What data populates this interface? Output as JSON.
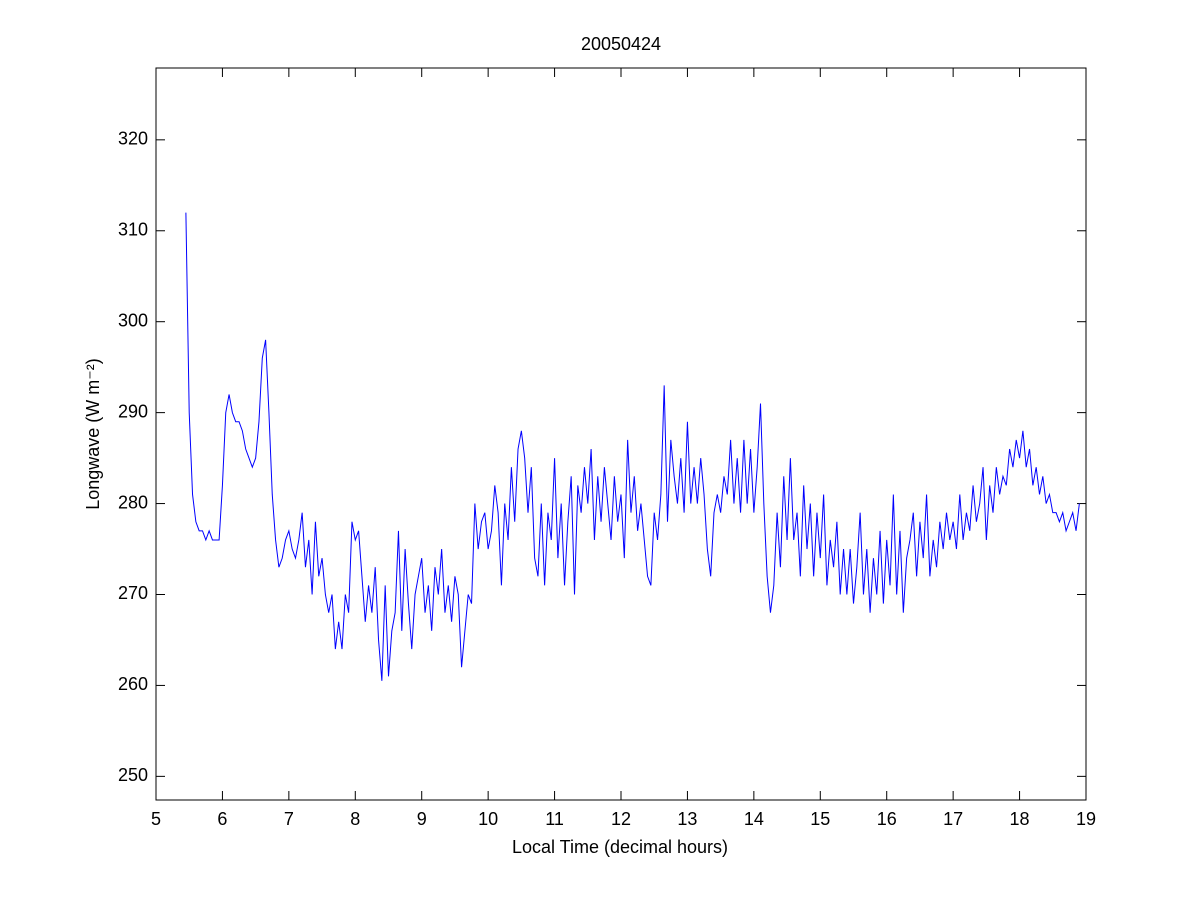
{
  "chart_data": {
    "type": "line",
    "title": "20050424",
    "x_label": "Local Time (decimal hours)",
    "y_label": "Longwave (W m⁻²)",
    "xlim": [
      5,
      19
    ],
    "xticks": [
      5,
      6,
      7,
      8,
      9,
      10,
      11,
      12,
      13,
      14,
      15,
      16,
      17,
      18,
      19
    ],
    "ylim": [
      247.4,
      327.9
    ],
    "yticks": [
      250,
      260,
      270,
      280,
      290,
      300,
      310,
      320
    ],
    "grid": false,
    "x": [
      5.45,
      5.5,
      5.55,
      5.6,
      5.65,
      5.7,
      5.75,
      5.8,
      5.85,
      5.9,
      5.95,
      6,
      6.05,
      6.1,
      6.15,
      6.2,
      6.25,
      6.3,
      6.35,
      6.4,
      6.45,
      6.5,
      6.55,
      6.6,
      6.65,
      6.7,
      6.75,
      6.8,
      6.85,
      6.9,
      6.95,
      7,
      7.05,
      7.1,
      7.15,
      7.2,
      7.25,
      7.3,
      7.35,
      7.4,
      7.45,
      7.5,
      7.55,
      7.6,
      7.65,
      7.7,
      7.75,
      7.8,
      7.85,
      7.9,
      7.95,
      8,
      8.05,
      8.1,
      8.15,
      8.2,
      8.25,
      8.3,
      8.35,
      8.4,
      8.45,
      8.5,
      8.55,
      8.6,
      8.65,
      8.7,
      8.75,
      8.8,
      8.85,
      8.9,
      8.95,
      9,
      9.05,
      9.1,
      9.15,
      9.2,
      9.25,
      9.3,
      9.35,
      9.4,
      9.45,
      9.5,
      9.55,
      9.6,
      9.65,
      9.7,
      9.75,
      9.8,
      9.85,
      9.9,
      9.95,
      10,
      10.05,
      10.1,
      10.15,
      10.2,
      10.25,
      10.3,
      10.35,
      10.4,
      10.45,
      10.5,
      10.55,
      10.6,
      10.65,
      10.7,
      10.75,
      10.8,
      10.85,
      10.9,
      10.95,
      11,
      11.05,
      11.1,
      11.15,
      11.2,
      11.25,
      11.3,
      11.35,
      11.4,
      11.45,
      11.5,
      11.55,
      11.6,
      11.65,
      11.7,
      11.75,
      11.8,
      11.85,
      11.9,
      11.95,
      12,
      12.05,
      12.1,
      12.15,
      12.2,
      12.25,
      12.3,
      12.35,
      12.4,
      12.45,
      12.5,
      12.55,
      12.6,
      12.65,
      12.7,
      12.75,
      12.8,
      12.85,
      12.9,
      12.95,
      13,
      13.05,
      13.1,
      13.15,
      13.2,
      13.25,
      13.3,
      13.35,
      13.4,
      13.45,
      13.5,
      13.55,
      13.6,
      13.65,
      13.7,
      13.75,
      13.8,
      13.85,
      13.9,
      13.95,
      14,
      14.05,
      14.1,
      14.15,
      14.2,
      14.25,
      14.3,
      14.35,
      14.4,
      14.45,
      14.5,
      14.55,
      14.6,
      14.65,
      14.7,
      14.75,
      14.8,
      14.85,
      14.9,
      14.95,
      15,
      15.05,
      15.1,
      15.15,
      15.2,
      15.25,
      15.3,
      15.35,
      15.4,
      15.45,
      15.5,
      15.55,
      15.6,
      15.65,
      15.7,
      15.75,
      15.8,
      15.85,
      15.9,
      15.95,
      16,
      16.05,
      16.1,
      16.15,
      16.2,
      16.25,
      16.3,
      16.35,
      16.4,
      16.45,
      16.5,
      16.55,
      16.6,
      16.65,
      16.7,
      16.75,
      16.8,
      16.85,
      16.9,
      16.95,
      17,
      17.05,
      17.1,
      17.15,
      17.2,
      17.25,
      17.3,
      17.35,
      17.4,
      17.45,
      17.5,
      17.55,
      17.6,
      17.65,
      17.7,
      17.75,
      17.8,
      17.85,
      17.9,
      17.95,
      18,
      18.05,
      18.1,
      18.15,
      18.2,
      18.25,
      18.3,
      18.35,
      18.4,
      18.45,
      18.5,
      18.55,
      18.6,
      18.65,
      18.7,
      18.75,
      18.8,
      18.85,
      18.9
    ],
    "series": [
      {
        "color": "#0000ff",
        "values": [
          312,
          290,
          281,
          278,
          277,
          277,
          276,
          277,
          276,
          276,
          276,
          282,
          290,
          292,
          290,
          289,
          289,
          288,
          286,
          285,
          284,
          285,
          289,
          296,
          298,
          290,
          281,
          276,
          273,
          274,
          276,
          277,
          275,
          274,
          276,
          279,
          273,
          276,
          270,
          278,
          272,
          274,
          270,
          268,
          270,
          264,
          267,
          264,
          270,
          268,
          278,
          276,
          277,
          272,
          267,
          271,
          268,
          273,
          265,
          260.5,
          271,
          261,
          266,
          268,
          277,
          266,
          275,
          269,
          264,
          270,
          272,
          274,
          268,
          271,
          266,
          273,
          270,
          275,
          268,
          271,
          267,
          272,
          270,
          262,
          266,
          270,
          269,
          280,
          275,
          278,
          279,
          275,
          277,
          282,
          279,
          271,
          280,
          276,
          284,
          278,
          286,
          288,
          285,
          279,
          284,
          274,
          272,
          280,
          271,
          279,
          276,
          285,
          274,
          280,
          271,
          278,
          283,
          270,
          282,
          279,
          284,
          280,
          286,
          276,
          283,
          278,
          284,
          280,
          276,
          283,
          278,
          281,
          274,
          287,
          279,
          283,
          277,
          280,
          276,
          272,
          271,
          279,
          276,
          281,
          293,
          278,
          287,
          283,
          280,
          285,
          279,
          289,
          280,
          284,
          280,
          285,
          281,
          275,
          272,
          279,
          281,
          279,
          283,
          281,
          287,
          280,
          285,
          279,
          287,
          280,
          286,
          279,
          284,
          291,
          280,
          272,
          268,
          271,
          279,
          273,
          283,
          276,
          285,
          276,
          279,
          272,
          282,
          275,
          280,
          272,
          279,
          274,
          281,
          271,
          276,
          273,
          278,
          270,
          275,
          270,
          275,
          269,
          273,
          279,
          270,
          275,
          268,
          274,
          270,
          277,
          269,
          276,
          271,
          281,
          270,
          277,
          268,
          274,
          276,
          279,
          272,
          278,
          274,
          281,
          272,
          276,
          273,
          278,
          275,
          279,
          276,
          278,
          275,
          281,
          276,
          279,
          277,
          282,
          278,
          280,
          284,
          276,
          282,
          279,
          284,
          281,
          283,
          282,
          286,
          284,
          287,
          285,
          288,
          284,
          286,
          282,
          284,
          281,
          283,
          280,
          281,
          279,
          279,
          278,
          279,
          277,
          278,
          279,
          277,
          280
        ]
      }
    ]
  }
}
